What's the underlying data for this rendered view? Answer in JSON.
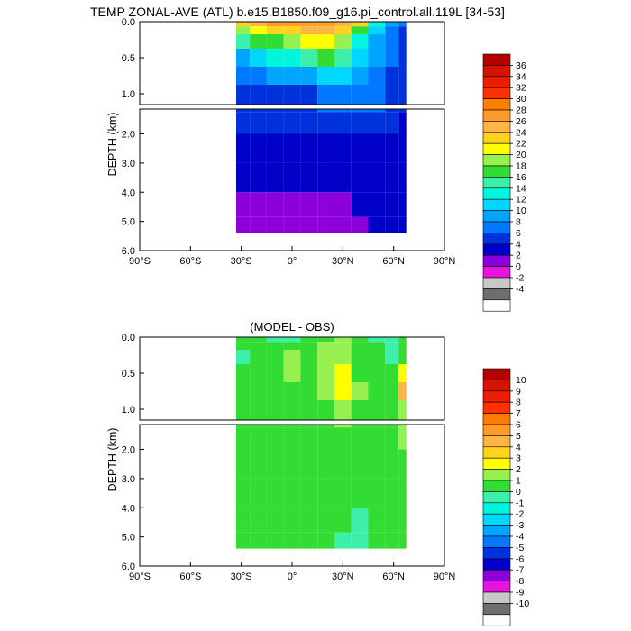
{
  "chart_data": [
    {
      "type": "contour",
      "title": "TEMP ZONAL-AVE (ATL) b.e15.B1850.f09_g16.pi_control.all.119L [34-53]",
      "ylabel": "DEPTH (km)",
      "xlim": [
        -90,
        90
      ],
      "ylim_upper_panel": [
        0.0,
        1.15
      ],
      "ylim_lower_panel": [
        1.15,
        6.0
      ],
      "x_ticks": [
        -90,
        -60,
        -30,
        0,
        30,
        60,
        90
      ],
      "x_tick_labels": [
        "90°S",
        "60°S",
        "30°S",
        "0°",
        "30°N",
        "60°N",
        "90°N"
      ],
      "y_ticks_upper": [
        0.0,
        0.5,
        1.0
      ],
      "y_tick_labels_upper": [
        "0.0",
        "0.5",
        "1.0"
      ],
      "y_ticks_lower": [
        2.0,
        3.0,
        4.0,
        5.0,
        6.0
      ],
      "y_tick_labels_lower": [
        "2.0",
        "3.0",
        "4.0",
        "5.0",
        "6.0"
      ],
      "colorbar_levels": [
        "36",
        "34",
        "32",
        "30",
        "28",
        "26",
        "24",
        "22",
        "20",
        "18",
        "16",
        "14",
        "12",
        "10",
        "8",
        "6",
        "4",
        "2",
        "0",
        "-2",
        "-4"
      ],
      "colorbar_colors": [
        "#b40000",
        "#d21400",
        "#eb1e00",
        "#ff3200",
        "#ff7d00",
        "#ff9b28",
        "#ffb446",
        "#ffd21e",
        "#ffff00",
        "#96f050",
        "#32dc32",
        "#3cf0aa",
        "#00f5dc",
        "#00d7ff",
        "#00a5ff",
        "#0078ff",
        "#0032dc",
        "#0000c8",
        "#8c00dc",
        "#e614dc",
        "#c8c8c8",
        "#6e6e6e",
        "#ffffff"
      ],
      "cells": {
        "lat": [
          -30,
          -20,
          -10,
          0,
          10,
          20,
          30,
          40,
          50,
          60,
          66
        ],
        "depth": [
          0.03,
          0.1,
          0.25,
          0.5,
          0.75,
          1.0,
          1.5,
          2.5,
          3.5,
          4.5,
          5.2
        ],
        "values": [
          [
            22,
            24,
            26,
            27,
            27,
            26,
            25,
            22,
            12,
            8,
            6
          ],
          [
            18,
            20,
            22,
            23,
            24,
            24,
            22,
            16,
            10,
            7,
            5
          ],
          [
            14,
            16,
            17,
            18,
            20,
            21,
            18,
            13,
            9,
            6,
            4
          ],
          [
            9,
            11,
            12,
            13,
            14,
            16,
            14,
            11,
            8,
            6,
            4
          ],
          [
            6,
            7,
            8,
            8,
            9,
            10,
            10,
            8,
            7,
            5,
            4
          ],
          [
            5,
            5,
            5,
            5,
            5,
            6,
            6,
            6,
            6,
            4,
            4
          ],
          [
            4,
            4,
            4,
            4,
            4,
            4,
            4,
            4,
            4,
            4,
            3
          ],
          [
            2,
            2,
            2,
            2,
            2,
            2,
            2,
            2,
            2,
            2,
            2
          ],
          [
            2,
            2,
            2,
            2,
            2,
            2,
            2,
            2,
            2,
            2,
            2
          ],
          [
            0.5,
            0.5,
            0.8,
            1.2,
            1.5,
            1.5,
            1.8,
            2,
            2,
            2,
            2
          ],
          [
            0.5,
            0.5,
            0.5,
            0.5,
            0.5,
            0.5,
            0.5,
            1,
            2,
            2,
            2
          ]
        ]
      }
    },
    {
      "type": "contour",
      "title": "(MODEL - OBS)",
      "ylabel": "DEPTH (km)",
      "xlim": [
        -90,
        90
      ],
      "ylim_upper_panel": [
        0.0,
        1.15
      ],
      "ylim_lower_panel": [
        1.15,
        6.0
      ],
      "x_ticks": [
        -90,
        -60,
        -30,
        0,
        30,
        60,
        90
      ],
      "x_tick_labels": [
        "90°S",
        "60°S",
        "30°S",
        "0°",
        "30°N",
        "60°N",
        "90°N"
      ],
      "y_ticks_upper": [
        0.0,
        0.5,
        1.0
      ],
      "y_tick_labels_upper": [
        "0.0",
        "0.5",
        "1.0"
      ],
      "y_ticks_lower": [
        2.0,
        3.0,
        4.0,
        5.0,
        6.0
      ],
      "y_tick_labels_lower": [
        "2.0",
        "3.0",
        "4.0",
        "5.0",
        "6.0"
      ],
      "colorbar_levels": [
        "10",
        "9",
        "8",
        "7",
        "6",
        "5",
        "4",
        "3",
        "2",
        "1",
        "0",
        "-1",
        "-2",
        "-3",
        "-4",
        "-5",
        "-6",
        "-7",
        "-8",
        "-9",
        "-10"
      ],
      "colorbar_colors": [
        "#b40000",
        "#d21400",
        "#eb1e00",
        "#ff3200",
        "#ff7d00",
        "#ff9b28",
        "#ffb446",
        "#ffd21e",
        "#ffff00",
        "#96f050",
        "#32dc32",
        "#3cf0aa",
        "#00f5dc",
        "#00d7ff",
        "#00a5ff",
        "#0078ff",
        "#0032dc",
        "#0000c8",
        "#8c00dc",
        "#e614dc",
        "#c8c8c8",
        "#6e6e6e",
        "#ffffff"
      ],
      "cells": {
        "lat": [
          -30,
          -20,
          -10,
          0,
          10,
          20,
          30,
          40,
          50,
          60,
          66
        ],
        "depth": [
          0.03,
          0.1,
          0.25,
          0.5,
          0.75,
          1.0,
          1.5,
          2.5,
          3.5,
          4.5,
          5.2
        ],
        "values": [
          [
            0.5,
            0.5,
            -0.5,
            -0.5,
            0.5,
            0.5,
            1.5,
            0.5,
            -0.5,
            -0.5,
            0.5
          ],
          [
            0.5,
            0.5,
            0.5,
            0.5,
            0.5,
            1.5,
            1.5,
            0.5,
            0.5,
            -0.5,
            0.5
          ],
          [
            -0.5,
            0.5,
            0.5,
            1.5,
            0.5,
            1.5,
            1.5,
            0.5,
            0.5,
            -0.5,
            0.5
          ],
          [
            0.5,
            0.5,
            0.5,
            1.5,
            0.5,
            1.5,
            2.5,
            0.5,
            0.5,
            0.5,
            2.5
          ],
          [
            0.5,
            0.5,
            0.5,
            0.5,
            0.5,
            1.5,
            2.5,
            1.5,
            0.5,
            0.5,
            4.5
          ],
          [
            0.5,
            0.5,
            0.5,
            0.5,
            0.5,
            0.5,
            1.5,
            0.5,
            0.5,
            0.5,
            1.5
          ],
          [
            0.5,
            0.5,
            0.5,
            0.5,
            0.5,
            0.5,
            0.5,
            0.5,
            0.5,
            0.5,
            1.5
          ],
          [
            0.5,
            0.5,
            0.5,
            0.5,
            0.5,
            0.5,
            0.5,
            0.5,
            0.5,
            0.5,
            0.5
          ],
          [
            0.5,
            0.5,
            0.5,
            0.5,
            0.5,
            0.5,
            0.5,
            0.5,
            0.5,
            0.5,
            0.5
          ],
          [
            0.5,
            0.5,
            0.5,
            0.5,
            0.5,
            0.5,
            0.5,
            -0.5,
            0.5,
            0.5,
            0.5
          ],
          [
            0.5,
            0.5,
            0.5,
            0.5,
            0.5,
            0.5,
            -0.5,
            -0.5,
            0.5,
            0.5,
            0.5
          ]
        ]
      }
    }
  ]
}
